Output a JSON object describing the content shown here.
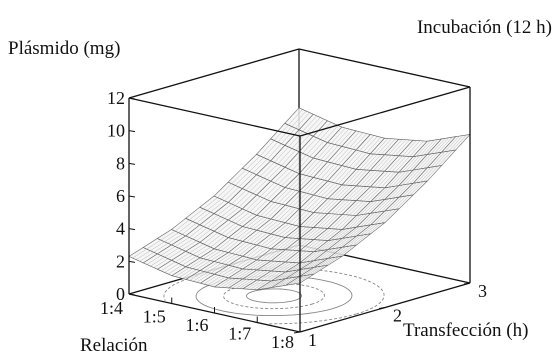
{
  "chart_data": {
    "type": "surface",
    "title": "Incubación (12 h)",
    "zlabel": "Plásmido (mg)",
    "xlabel": "Relación",
    "ylabel": "Transfección (h)",
    "x_ticks": [
      "1:4",
      "1:5",
      "1:6",
      "1:7",
      "1:8"
    ],
    "y_ticks": [
      "1",
      "2",
      "3"
    ],
    "z_ticks": [
      "0",
      "2",
      "4",
      "6",
      "8",
      "10",
      "12"
    ],
    "zlim": [
      0,
      12
    ],
    "surface": {
      "rows_x": [
        "1:4",
        "1:5",
        "1:6",
        "1:7",
        "1:8"
      ],
      "cols_y": [
        1,
        1.5,
        2,
        2.5,
        3
      ],
      "z": [
        [
          2.3,
          3.2,
          4.5,
          6.3,
          8.4
        ],
        [
          1.7,
          2.6,
          3.9,
          5.7,
          7.8
        ],
        [
          1.6,
          2.5,
          3.8,
          5.6,
          7.7
        ],
        [
          2.0,
          2.9,
          4.2,
          6.0,
          8.1
        ],
        [
          3.0,
          3.9,
          5.2,
          7.0,
          9.1
        ]
      ]
    },
    "contours": true,
    "grid": false,
    "colors": {
      "axes": "#111111",
      "surface": "#555555",
      "contour": "#888888"
    }
  }
}
